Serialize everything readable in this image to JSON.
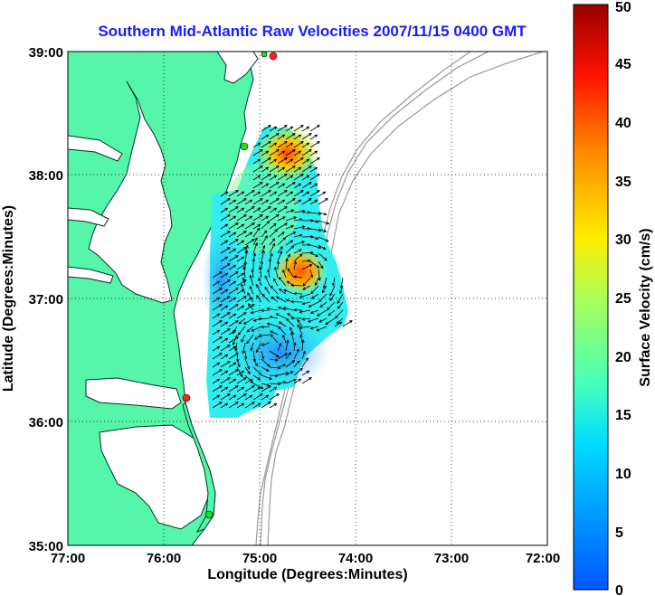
{
  "title": "Southern Mid-Atlantic Raw Velocities 2007/11/15 0400 GMT",
  "xaxis": {
    "label": "Longitude (Degrees:Minutes)",
    "ticks": [
      "77:00",
      "76:00",
      "75:00",
      "74:00",
      "73:00",
      "72:00"
    ],
    "range": [
      -77,
      -72
    ]
  },
  "yaxis": {
    "label": "Latitude (Degrees:Minutes)",
    "ticks": [
      "35:00",
      "36:00",
      "37:00",
      "38:00",
      "39:00"
    ],
    "range": [
      35,
      39
    ]
  },
  "colorbar": {
    "label": "Surface Velocity (cm/s)",
    "ticks": [
      "0",
      "5",
      "10",
      "15",
      "20",
      "25",
      "30",
      "35",
      "40",
      "45",
      "50"
    ],
    "range": [
      0,
      50
    ]
  },
  "colors": {
    "land": "#55f5aa",
    "ocean": "#ffffff",
    "bathymetry": "#9a9a9a",
    "title": "#1a1aff",
    "station_red": "#ff2020",
    "station_green": "#22dd22"
  },
  "grid": true,
  "stations": [
    {
      "color": "red",
      "lon": -74.85,
      "lat": 38.96
    },
    {
      "color": "green",
      "lon": -75.15,
      "lat": 38.22
    },
    {
      "color": "red",
      "lon": -75.75,
      "lat": 36.18
    },
    {
      "color": "green",
      "lon": -75.5,
      "lat": 35.25
    }
  ]
}
